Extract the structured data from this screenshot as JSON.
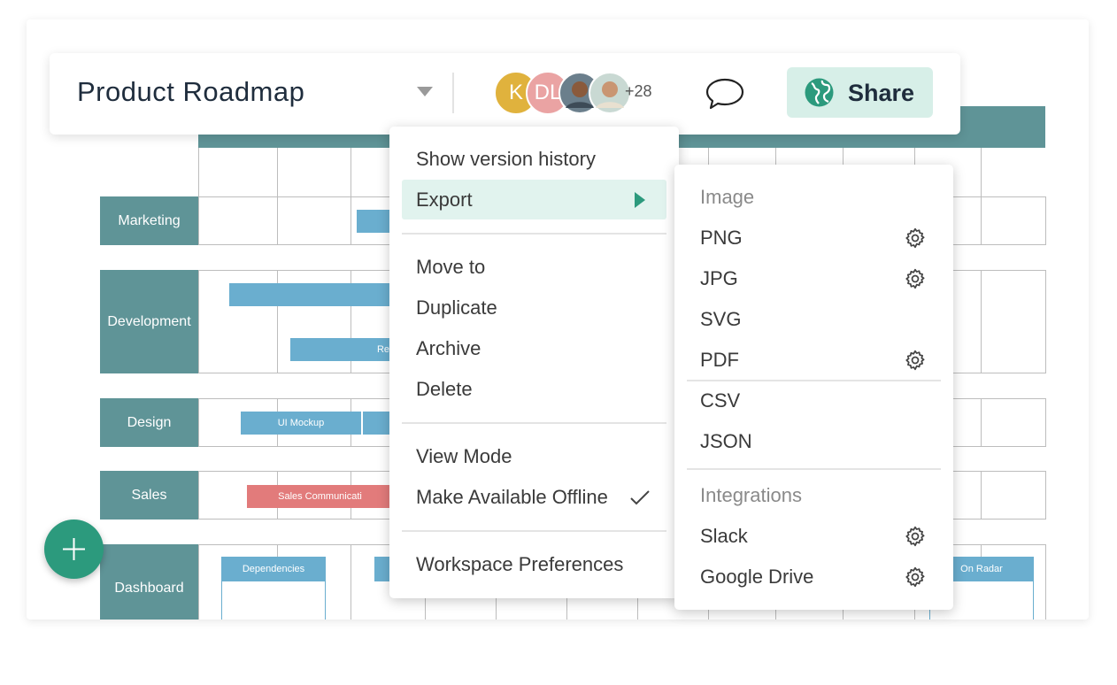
{
  "header": {
    "title": "Product Roadmap",
    "avatars": [
      "K",
      "DL"
    ],
    "more_count": "+28",
    "share": "Share"
  },
  "roadmap": {
    "rows": [
      "Marketing",
      "Development",
      "Design",
      "Sales",
      "Dashboard"
    ],
    "bars": [
      "Re",
      "UI Mockup",
      "Sales Communicati"
    ],
    "cards": [
      "Dependencies",
      "On Radar"
    ]
  },
  "menu": {
    "items": [
      "Show version history",
      "Export",
      "Move to",
      "Duplicate",
      "Archive",
      "Delete",
      "View Mode",
      "Make Available Offline",
      "Workspace Preferences"
    ]
  },
  "submenu": {
    "image_heading": "Image",
    "image_formats": [
      "PNG",
      "JPG",
      "SVG",
      "PDF"
    ],
    "data_formats": [
      "CSV",
      "JSON"
    ],
    "integrations_heading": "Integrations",
    "integrations": [
      "Slack",
      "Google Drive"
    ]
  }
}
